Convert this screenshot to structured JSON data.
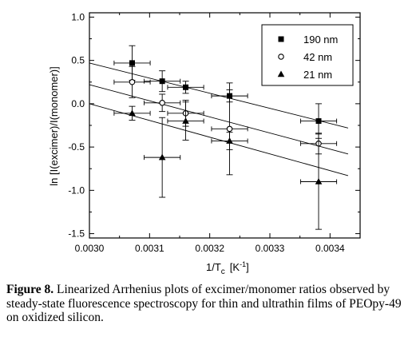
{
  "chart_data": {
    "type": "scatter",
    "title": "",
    "xlabel": "1/T",
    "xlabel_sub": "c",
    "xlabel_unit": "[K",
    "xlabel_unit_sup": "-1",
    "xlabel_unit_close": "]",
    "ylabel": "ln [I(excimer)/I(monomer)]",
    "xlim": [
      0.003,
      0.00345
    ],
    "ylim": [
      -1.55,
      1.05
    ],
    "x_ticks": [
      0.003,
      0.0031,
      0.0032,
      0.0033,
      0.0034
    ],
    "x_tick_labels": [
      "0.0030",
      "0.0031",
      "0.0032",
      "0.0033",
      "0.0034"
    ],
    "y_ticks": [
      -1.5,
      -1.0,
      -0.5,
      0.0,
      0.5,
      1.0
    ],
    "y_tick_labels": [
      "-1.5",
      "-1.0",
      "-0.5",
      "0.0",
      "0.5",
      "1.0"
    ],
    "grid": false,
    "legend_position": "top-right",
    "series": [
      {
        "name": "190 nm",
        "marker": "square-filled",
        "points": [
          {
            "x": 0.003071,
            "y": 0.47,
            "xerr": 3e-05,
            "yerr": 0.2
          },
          {
            "x": 0.003121,
            "y": 0.26,
            "xerr": 3e-05,
            "yerr": 0.12
          },
          {
            "x": 0.00316,
            "y": 0.19,
            "xerr": 3e-05,
            "yerr": 0.07
          },
          {
            "x": 0.003233,
            "y": 0.09,
            "xerr": 3e-05,
            "yerr": 0.07
          },
          {
            "x": 0.003381,
            "y": -0.2,
            "xerr": 3e-05,
            "yerr": 0.2
          }
        ],
        "fit": {
          "x": [
            0.003,
            0.00343
          ],
          "y": [
            0.47,
            -0.28
          ]
        }
      },
      {
        "name": "42 nm",
        "marker": "circle-open",
        "points": [
          {
            "x": 0.003071,
            "y": 0.25,
            "xerr": 3e-05,
            "yerr": 0.18
          },
          {
            "x": 0.003121,
            "y": 0.01,
            "xerr": 3e-05,
            "yerr": 0.1
          },
          {
            "x": 0.00316,
            "y": -0.11,
            "xerr": 3e-05,
            "yerr": 0.15
          },
          {
            "x": 0.003233,
            "y": -0.29,
            "xerr": 3e-05,
            "yerr": 0.53
          },
          {
            "x": 0.003381,
            "y": -0.46,
            "xerr": 3e-05,
            "yerr": 0.12
          }
        ],
        "fit": {
          "x": [
            0.003,
            0.00343
          ],
          "y": [
            0.22,
            -0.58
          ]
        }
      },
      {
        "name": "21 nm",
        "marker": "triangle-filled",
        "points": [
          {
            "x": 0.003071,
            "y": -0.11,
            "xerr": 3e-05,
            "yerr": 0.08
          },
          {
            "x": 0.003121,
            "y": -0.62,
            "xerr": 3e-05,
            "yerr": 0.46
          },
          {
            "x": 0.00316,
            "y": -0.2,
            "xerr": 3e-05,
            "yerr": 0.22
          },
          {
            "x": 0.003233,
            "y": -0.43,
            "xerr": 3e-05,
            "yerr": 0.1
          },
          {
            "x": 0.003381,
            "y": -0.9,
            "xerr": 3e-05,
            "yerr": 0.55
          }
        ],
        "fit": {
          "x": [
            0.003,
            0.00343
          ],
          "y": [
            0.0,
            -0.83
          ]
        }
      }
    ]
  },
  "caption": {
    "label": "Figure 8.",
    "text": "Linearized Arrhenius plots of excimer/monomer ratios observed by steady-state fluorescence spectroscopy for thin and ultrathin films of PEOpy-49 on oxidized silicon."
  }
}
